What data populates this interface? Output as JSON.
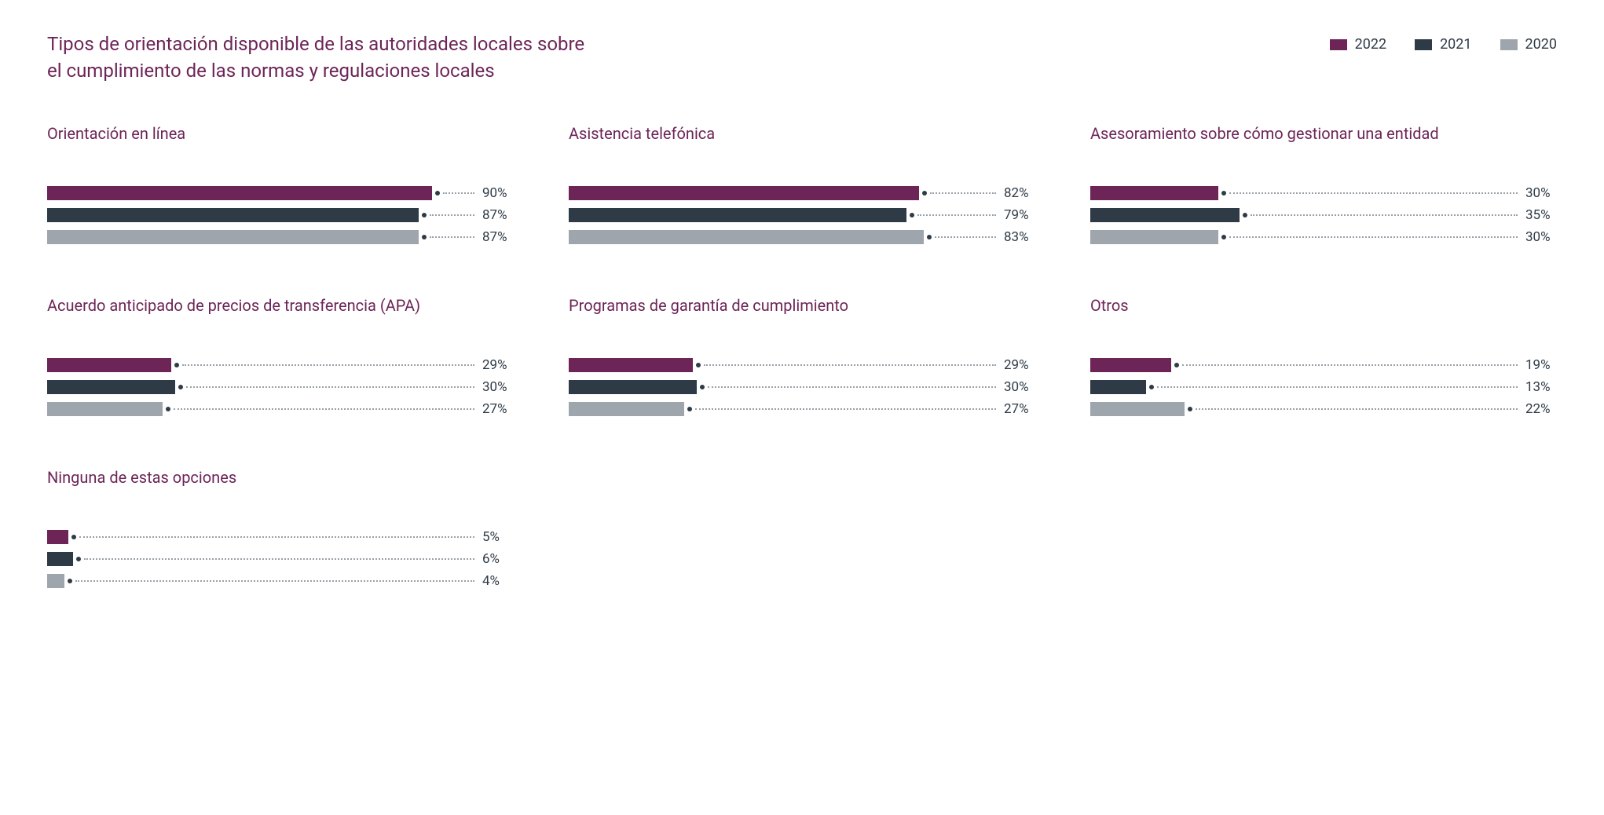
{
  "title": "Tipos de orientación disponible de las autoridades locales sobre el cumplimiento de las normas y regulaciones locales",
  "title_color": "#6d2457",
  "panel_title_color": "#6d2457",
  "text_color": "#2e3b47",
  "background_color": "#ffffff",
  "series": [
    {
      "year": "2022",
      "color": "#6d2457"
    },
    {
      "year": "2021",
      "color": "#2e3b47"
    },
    {
      "year": "2020",
      "color": "#9ea5ad"
    }
  ],
  "max_percent": 100,
  "panels": [
    {
      "title": "Orientación en línea",
      "values": [
        90,
        87,
        87
      ]
    },
    {
      "title": "Asistencia telefónica",
      "values": [
        82,
        79,
        83
      ]
    },
    {
      "title": "Asesoramiento sobre cómo gestionar una entidad",
      "values": [
        30,
        35,
        30
      ]
    },
    {
      "title": "Acuerdo anticipado de precios de transferencia (APA)",
      "values": [
        29,
        30,
        27
      ]
    },
    {
      "title": "Programas de garantía de cumplimiento",
      "values": [
        29,
        30,
        27
      ]
    },
    {
      "title": "Otros",
      "values": [
        19,
        13,
        22
      ]
    },
    {
      "title": "Ninguna de estas opciones",
      "values": [
        5,
        6,
        4
      ]
    }
  ]
}
